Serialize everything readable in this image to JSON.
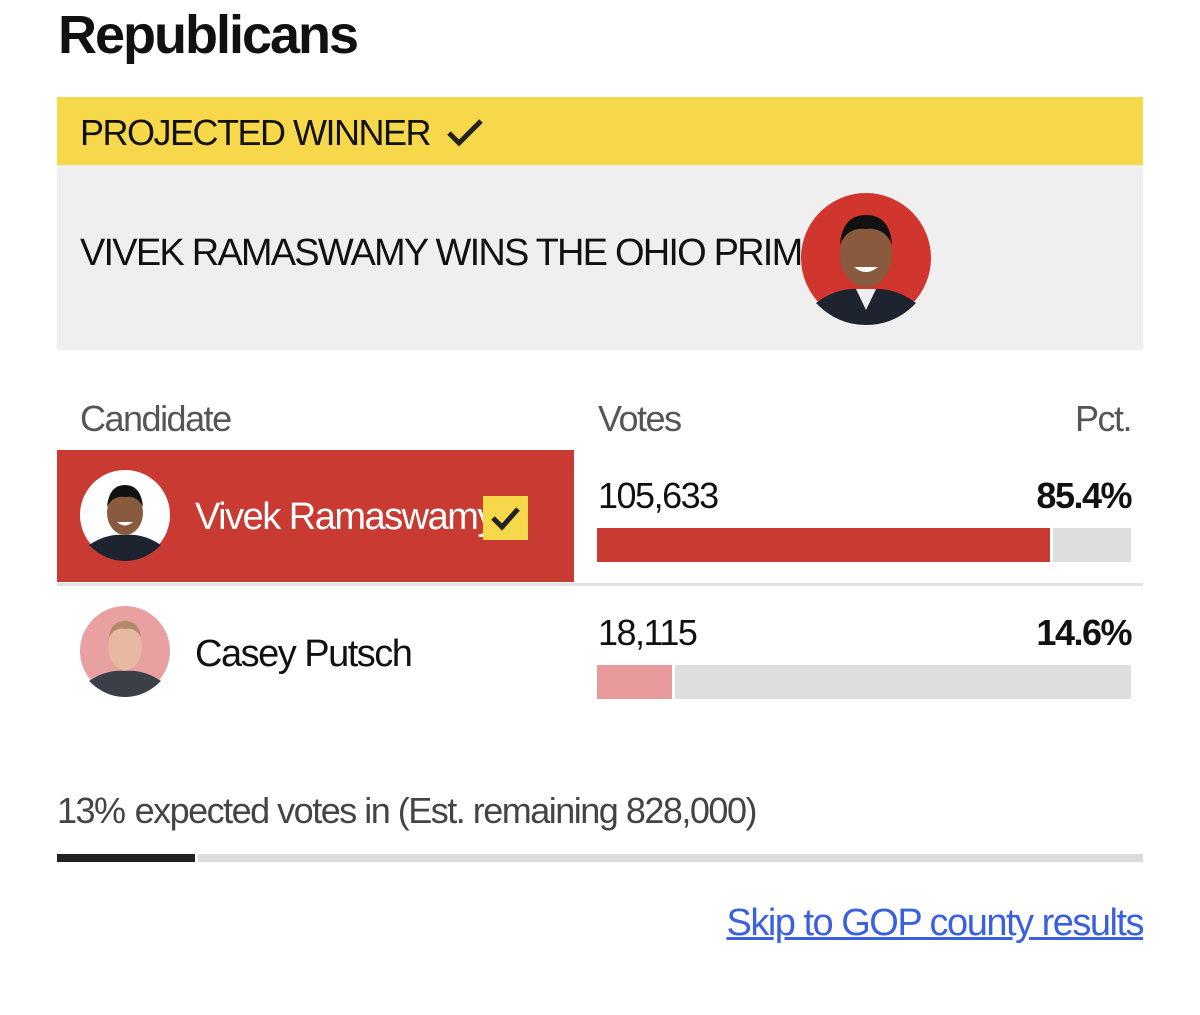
{
  "header": {
    "title": "Republicans"
  },
  "banner": {
    "label": "PROJECTED WINNER",
    "headline": "VIVEK RAMASWAMY WINS THE OHIO PRIMARY"
  },
  "table": {
    "columns": [
      "Candidate",
      "Votes",
      "Pct."
    ],
    "candidates": [
      {
        "name": "Vivek Ramaswamy",
        "votes": "105,633",
        "pct": {
          "value": 85.4,
          "label": "85.4%"
        }
      },
      {
        "name": "Casey Putsch",
        "votes": "18,115",
        "pct": {
          "value": 14.6,
          "label": "14.6%"
        }
      }
    ]
  },
  "reporting": {
    "expected": {
      "value": 13,
      "label": "13%"
    },
    "text": "expected votes in (Est. remaining 828,000)"
  },
  "link": "Skip to GOP county results"
}
